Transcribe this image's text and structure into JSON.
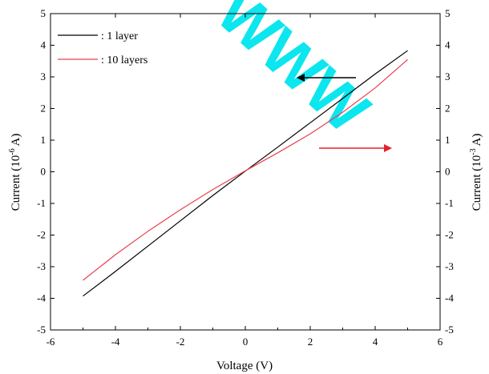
{
  "chart_data": {
    "type": "line",
    "title": "",
    "xlabel": "Voltage (V)",
    "ylabel_left": {
      "base": "Current (10",
      "sup": "-6",
      "tail": " A)"
    },
    "ylabel_right": {
      "base": "Current (10",
      "sup": "-3",
      "tail": " A)"
    },
    "xlim": [
      -6,
      6
    ],
    "ylim_left": [
      -5,
      5
    ],
    "ylim_right": [
      -5,
      5
    ],
    "x_ticks": [
      "-6",
      "-4",
      "-2",
      "0",
      "2",
      "4",
      "6"
    ],
    "y_ticks_left": [
      "-5",
      "-4",
      "-3",
      "-2",
      "-1",
      "0",
      "1",
      "2",
      "3",
      "4",
      "5"
    ],
    "y_ticks_right": [
      "-5",
      "-4",
      "-3",
      "-2",
      "-1",
      "0",
      "1",
      "2",
      "3",
      "4",
      "5"
    ],
    "grid": false,
    "legend_position": "top-left",
    "series": [
      {
        "name": ": 1 layer",
        "axis": "left",
        "color": "#000000",
        "x": [
          -5,
          -4,
          -3,
          -2,
          -1,
          0,
          1,
          2,
          3,
          4,
          5
        ],
        "y": [
          -3.93,
          -3.15,
          -2.35,
          -1.55,
          -0.75,
          0.02,
          0.78,
          1.55,
          2.32,
          3.09,
          3.83
        ]
      },
      {
        "name": ": 10 layers",
        "axis": "right",
        "color": "#e8404f",
        "x": [
          -5,
          -4,
          -3,
          -2,
          -1,
          0,
          1,
          2,
          3,
          4,
          5
        ],
        "y": [
          -3.43,
          -2.62,
          -1.88,
          -1.2,
          -0.56,
          0.03,
          0.6,
          1.2,
          1.88,
          2.65,
          3.55
        ]
      }
    ],
    "annotations": [
      {
        "type": "arrow",
        "direction": "left",
        "color": "#000000",
        "points_to": "left axis"
      },
      {
        "type": "arrow",
        "direction": "right",
        "color": "#e8202a",
        "points_to": "right axis"
      }
    ]
  },
  "watermark": {
    "text": "WWW",
    "color": "#00e5ee"
  }
}
